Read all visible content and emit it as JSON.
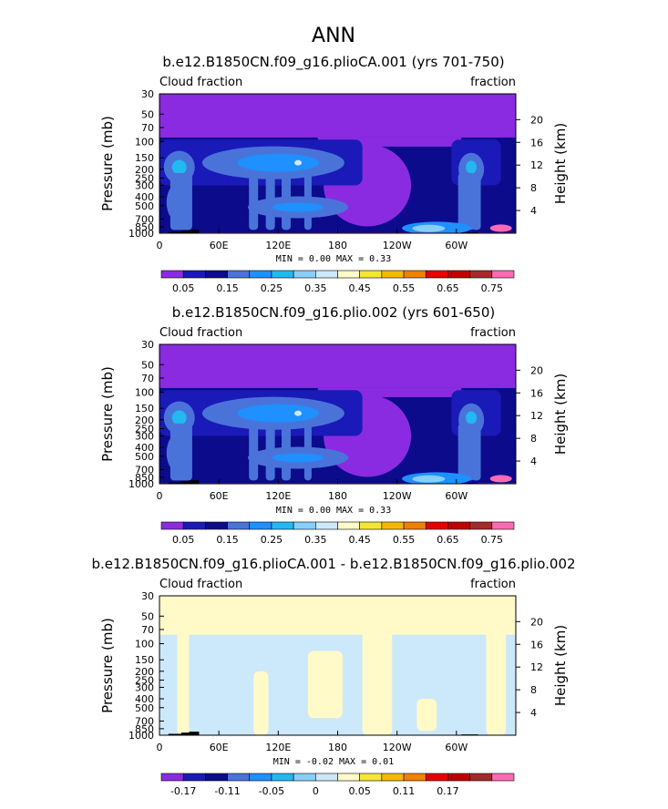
{
  "figure": {
    "season": "ANN",
    "colors": {
      "levels": [
        "#8a2be2",
        "#1a1ab8",
        "#0b0b8c",
        "#4a73d9",
        "#1e90ff",
        "#22b8f0",
        "#87cefa",
        "#cce8fb",
        "#fffac8",
        "#f5e634",
        "#f5b800",
        "#f08000",
        "#e60000",
        "#c00000",
        "#a52a2a",
        "#ff69b4"
      ],
      "diff_levels": [
        "#8a2be2",
        "#1a1ab8",
        "#0b0b8c",
        "#4a73d9",
        "#1e90ff",
        "#22b8f0",
        "#87cefa",
        "#cce8fb",
        "#fffac8",
        "#f5e634",
        "#f5b800",
        "#f08000",
        "#e60000",
        "#c00000",
        "#a52a2a",
        "#ff69b4"
      ],
      "land": "#000000"
    }
  },
  "chart_data": [
    {
      "type": "heatmap",
      "title": "b.e12.B1850CN.f09_g16.plioCA.001 (yrs 701-750)",
      "left_label": "Cloud fraction",
      "right_label": "fraction",
      "xlabel": "",
      "ylabel": "Pressure (mb)",
      "ylabel_right": "Height (km)",
      "x_ticks": [
        "0",
        "60E",
        "120E",
        "180",
        "120W",
        "60W"
      ],
      "x_tick_lons": [
        0,
        60,
        120,
        180,
        240,
        300
      ],
      "xlim": [
        0,
        360
      ],
      "y_ticks": [
        "30",
        "50",
        "70",
        "100",
        "150",
        "200",
        "250",
        "300",
        "400",
        "500",
        "700",
        "850",
        "1000"
      ],
      "y_tick_values": [
        30,
        50,
        70,
        100,
        150,
        200,
        250,
        300,
        400,
        500,
        700,
        850,
        1000
      ],
      "ylim": [
        1000,
        30
      ],
      "y_scale": "log",
      "height_ticks": [
        "20",
        "16",
        "12",
        "8",
        "4"
      ],
      "height_tick_values": [
        20,
        16,
        12,
        8,
        4
      ],
      "min_max_text": "MIN =    0.00   MAX =    0.33",
      "min": 0.0,
      "max": 0.33,
      "colorbar_labels": [
        "0.05",
        "0.15",
        "0.25",
        "0.35",
        "0.45",
        "0.55",
        "0.65",
        "0.75"
      ],
      "contour_levels": [
        0.05,
        0.1,
        0.15,
        0.2,
        0.25,
        0.3
      ],
      "plot_type": "zonal-pressure cross section"
    },
    {
      "type": "heatmap",
      "title": "b.e12.B1850CN.f09_g16.plio.002 (yrs 601-650)",
      "left_label": "Cloud fraction",
      "right_label": "fraction",
      "xlabel": "",
      "ylabel": "Pressure (mb)",
      "ylabel_right": "Height (km)",
      "x_ticks": [
        "0",
        "60E",
        "120E",
        "180",
        "120W",
        "60W"
      ],
      "x_tick_lons": [
        0,
        60,
        120,
        180,
        240,
        300
      ],
      "xlim": [
        0,
        360
      ],
      "y_ticks": [
        "30",
        "50",
        "70",
        "100",
        "150",
        "200",
        "250",
        "300",
        "400",
        "500",
        "700",
        "850",
        "1000"
      ],
      "y_tick_values": [
        30,
        50,
        70,
        100,
        150,
        200,
        250,
        300,
        400,
        500,
        700,
        850,
        1000
      ],
      "ylim": [
        1000,
        30
      ],
      "y_scale": "log",
      "height_ticks": [
        "20",
        "16",
        "12",
        "8",
        "4"
      ],
      "height_tick_values": [
        20,
        16,
        12,
        8,
        4
      ],
      "min_max_text": "MIN =    0.00   MAX =    0.33",
      "min": 0.0,
      "max": 0.33,
      "colorbar_labels": [
        "0.05",
        "0.15",
        "0.25",
        "0.35",
        "0.45",
        "0.55",
        "0.65",
        "0.75"
      ],
      "contour_levels": [
        0.05,
        0.1,
        0.15,
        0.2,
        0.25,
        0.3
      ],
      "plot_type": "zonal-pressure cross section"
    },
    {
      "type": "heatmap",
      "title": "b.e12.B1850CN.f09_g16.plioCA.001 - b.e12.B1850CN.f09_g16.plio.002",
      "left_label": "Cloud fraction",
      "right_label": "fraction",
      "xlabel": "",
      "ylabel": "Pressure (mb)",
      "ylabel_right": "Height (km)",
      "x_ticks": [
        "0",
        "60E",
        "120E",
        "180",
        "120W",
        "60W"
      ],
      "x_tick_lons": [
        0,
        60,
        120,
        180,
        240,
        300
      ],
      "xlim": [
        0,
        360
      ],
      "y_ticks": [
        "30",
        "50",
        "70",
        "100",
        "150",
        "200",
        "250",
        "300",
        "400",
        "500",
        "700",
        "850",
        "1000"
      ],
      "y_tick_values": [
        30,
        50,
        70,
        100,
        150,
        200,
        250,
        300,
        400,
        500,
        700,
        850,
        1000
      ],
      "ylim": [
        1000,
        30
      ],
      "y_scale": "log",
      "height_ticks": [
        "20",
        "16",
        "12",
        "8",
        "4"
      ],
      "height_tick_values": [
        20,
        16,
        12,
        8,
        4
      ],
      "min_max_text": "MIN =   -0.02   MAX =    0.01",
      "min": -0.02,
      "max": 0.01,
      "colorbar_labels": [
        "-0.17",
        "-0.11",
        "-0.05",
        "0",
        "0.05",
        "0.11",
        "0.17"
      ],
      "contour_levels": [
        -0.02,
        -0.01,
        0.0,
        0.01
      ],
      "plot_type": "zonal-pressure cross section difference"
    }
  ]
}
